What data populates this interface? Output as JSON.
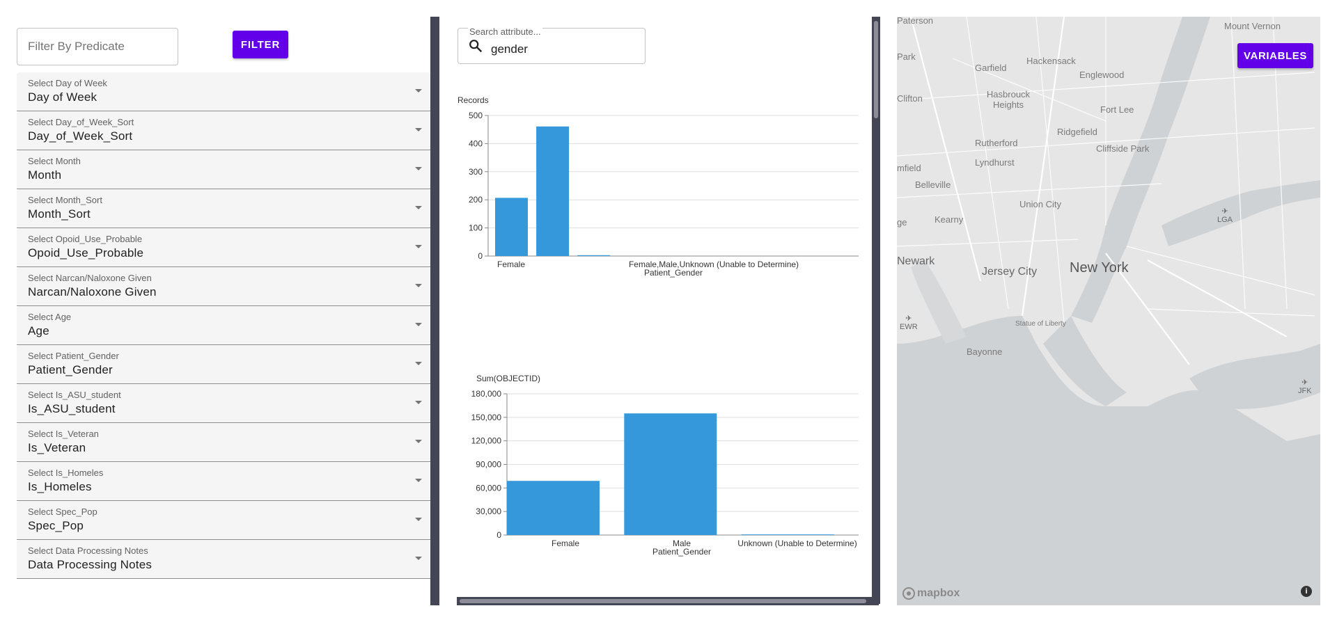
{
  "left_panel": {
    "predicate_placeholder": "Filter By Predicate",
    "filter_button": "FILTER",
    "selects": [
      {
        "label": "Select Day of Week",
        "value": "Day of Week"
      },
      {
        "label": "Select Day_of_Week_Sort",
        "value": "Day_of_Week_Sort"
      },
      {
        "label": "Select Month",
        "value": "Month"
      },
      {
        "label": "Select Month_Sort",
        "value": "Month_Sort"
      },
      {
        "label": "Select Opoid_Use_Probable",
        "value": "Opoid_Use_Probable"
      },
      {
        "label": "Select Narcan/Naloxone Given",
        "value": "Narcan/Naloxone Given"
      },
      {
        "label": "Select Age",
        "value": "Age"
      },
      {
        "label": "Select Patient_Gender",
        "value": "Patient_Gender"
      },
      {
        "label": "Select Is_ASU_student",
        "value": "Is_ASU_student"
      },
      {
        "label": "Select Is_Veteran",
        "value": "Is_Veteran"
      },
      {
        "label": "Select Is_Homeles",
        "value": "Is_Homeles"
      },
      {
        "label": "Select Spec_Pop",
        "value": "Spec_Pop"
      },
      {
        "label": "Select Data Processing Notes",
        "value": "Data Processing Notes"
      }
    ]
  },
  "middle_panel": {
    "search_label": "Search attribute...",
    "search_value": "gender",
    "search_icon": "search-icon"
  },
  "chart_data": [
    {
      "type": "bar",
      "ylabel": "Records",
      "xlabel": "Patient_Gender",
      "categories": [
        "Female",
        "Male",
        "Unknown (Unable to Determine)",
        "Female,Male,Unknown (Unable to Determine)"
      ],
      "x_tick_labels": [
        "Female",
        "Female,Male,Unknown (Unable to Determine)"
      ],
      "values": [
        207,
        461,
        3,
        0
      ],
      "ylim": [
        0,
        500
      ],
      "yticks": [
        0,
        100,
        200,
        300,
        400,
        500
      ],
      "grid": true,
      "color": "#3498db"
    },
    {
      "type": "bar",
      "ylabel": "Sum(OBJECTID)",
      "xlabel": "Patient_Gender",
      "categories": [
        "Female",
        "Male",
        "Unknown (Unable to Determine)"
      ],
      "values": [
        69000,
        155000,
        800
      ],
      "ylim": [
        0,
        180000
      ],
      "yticks": [
        0,
        30000,
        60000,
        90000,
        120000,
        150000,
        180000
      ],
      "ytick_labels": [
        "0",
        "30,000",
        "60,000",
        "90,000",
        "120,000",
        "150,000",
        "180,000"
      ],
      "grid": true,
      "color": "#3498db"
    }
  ],
  "map": {
    "variables_button": "VARIABLES",
    "places": [
      {
        "name": "Paterson",
        "size": "small"
      },
      {
        "name": "Mount Vernon",
        "size": "small"
      },
      {
        "name": "Park",
        "size": "small"
      },
      {
        "name": "Garfield",
        "size": "small"
      },
      {
        "name": "Hackensack",
        "size": "small"
      },
      {
        "name": "Englewood",
        "size": "small"
      },
      {
        "name": "Clifton",
        "size": "small"
      },
      {
        "name": "Hasbrouck Heights",
        "size": "small"
      },
      {
        "name": "Fort Lee",
        "size": "small"
      },
      {
        "name": "Rutherford",
        "size": "small"
      },
      {
        "name": "Ridgefield",
        "size": "small"
      },
      {
        "name": "Cliffside Park",
        "size": "small"
      },
      {
        "name": "Lyndhurst",
        "size": "small"
      },
      {
        "name": "mfield",
        "size": "small"
      },
      {
        "name": "Belleville",
        "size": "small"
      },
      {
        "name": "Union City",
        "size": "small"
      },
      {
        "name": "Kearny",
        "size": "small"
      },
      {
        "name": "ge",
        "size": "small"
      },
      {
        "name": "Newark",
        "size": "mid"
      },
      {
        "name": "Jersey City",
        "size": "mid"
      },
      {
        "name": "New York",
        "size": "big"
      },
      {
        "name": "Statue of Liberty",
        "size": "tiny"
      },
      {
        "name": "Bayonne",
        "size": "small"
      }
    ],
    "airports": [
      "LGA",
      "EWR",
      "JFK"
    ],
    "attribution": "mapbox",
    "info_icon": "i"
  }
}
